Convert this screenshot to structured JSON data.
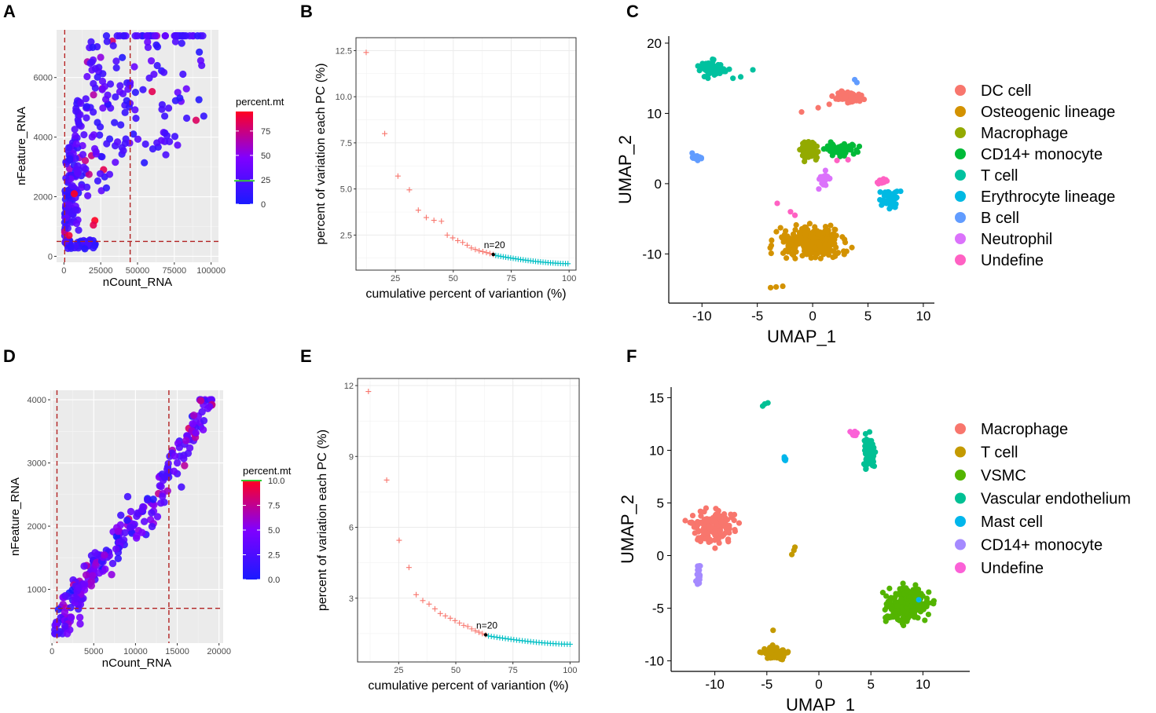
{
  "colors": {
    "panel_bg": "#ebebeb",
    "cutoff_line": "#b22222",
    "elbow_before": "#f8766d",
    "elbow_after": "#00bfc4",
    "mt_low": "#1a1aff",
    "mt_mid": "#8000ff",
    "mt_high": "#ff0022"
  },
  "chart_data": [
    {
      "panel": "A",
      "type": "scatter",
      "xlabel": "nCount_RNA",
      "ylabel": "nFeature_RNA",
      "xlim": [
        -5000,
        105000
      ],
      "ylim": [
        -200,
        7600
      ],
      "x_ticks": [
        0,
        25000,
        50000,
        75000,
        100000
      ],
      "x_tick_labels": [
        "0",
        "25000",
        "50000",
        "75000",
        "100000"
      ],
      "y_ticks": [
        0,
        2000,
        4000,
        6000
      ],
      "y_tick_labels": [
        "0",
        "2000",
        "4000",
        "6000"
      ],
      "cutoffs": {
        "x": [
          500,
          45000
        ],
        "y": [
          500
        ]
      },
      "legend": {
        "title": "percent.mt",
        "range": [
          0,
          95
        ],
        "ticks": [
          0,
          25,
          50,
          75
        ],
        "tick_labels": [
          "0",
          "25",
          "50",
          "75"
        ],
        "marker": 24
      },
      "approx_points": 260,
      "trend": {
        "a": 1800,
        "b": 0.35,
        "max_x": 95000,
        "max_y": 7400
      }
    },
    {
      "panel": "B",
      "type": "scatter",
      "xlabel": "cumulative percent of variantion (%)",
      "ylabel": "percent of variation each PC (%)",
      "xlim": [
        8,
        103
      ],
      "ylim": [
        0.6,
        13.2
      ],
      "x_ticks": [
        25,
        50,
        75,
        100
      ],
      "x_tick_labels": [
        "25",
        "50",
        "75",
        "100"
      ],
      "y_ticks": [
        2.5,
        5.0,
        7.5,
        10.0,
        12.5
      ],
      "y_tick_labels": [
        "2.5",
        "5.0",
        "7.5",
        "10.0",
        "12.5"
      ],
      "annotation": "n=20",
      "pc_cutoff": 20,
      "first_pc_values": [
        12.4,
        8.0,
        5.7,
        4.95,
        3.85,
        3.45,
        3.3,
        3.25,
        2.5,
        2.35,
        2.2,
        2.1,
        1.95,
        1.8,
        1.72,
        1.65,
        1.6,
        1.55,
        1.5,
        1.45
      ],
      "first_pc_cumulative": [
        12.4,
        20.4,
        26.1,
        31.05,
        34.9,
        38.35,
        41.65,
        44.9,
        47.4,
        49.75,
        51.95,
        54.05,
        56.0,
        57.8,
        59.52,
        61.17,
        62.77,
        64.32,
        65.82,
        67.27
      ],
      "tail_count": 30,
      "tail_start_value": 1.42,
      "tail_end_value": 0.95,
      "tail_end_cumulative": 99.5
    },
    {
      "panel": "C",
      "type": "scatter",
      "xlabel": "UMAP_1",
      "ylabel": "UMAP_2",
      "xlim": [
        -13,
        11
      ],
      "ylim": [
        -17,
        21
      ],
      "x_ticks": [
        -10,
        -5,
        0,
        5,
        10
      ],
      "x_tick_labels": [
        "-10",
        "-5",
        "0",
        "5",
        "10"
      ],
      "y_ticks": [
        -10,
        0,
        10,
        20
      ],
      "y_tick_labels": [
        "-10",
        "0",
        "10",
        "20"
      ],
      "legend": [
        {
          "label": "DC cell",
          "color": "#f8766d"
        },
        {
          "label": "Osteogenic lineage",
          "color": "#d39200"
        },
        {
          "label": "Macrophage",
          "color": "#93aa00"
        },
        {
          "label": "CD14+ monocyte",
          "color": "#00ba38"
        },
        {
          "label": "T cell",
          "color": "#00c19f"
        },
        {
          "label": "Erythrocyte lineage",
          "color": "#00b9e3"
        },
        {
          "label": "B cell",
          "color": "#619cff"
        },
        {
          "label": "Neutrophil",
          "color": "#db72fb"
        },
        {
          "label": "Undefine",
          "color": "#ff61c3"
        }
      ],
      "clusters": [
        {
          "label": "DC cell",
          "center": [
            3.3,
            12.4
          ],
          "spread": [
            1.3,
            0.8
          ],
          "n": 90,
          "extra": [
            [
              -1,
              10.2
            ],
            [
              0.5,
              10.8
            ],
            [
              1.5,
              11.3
            ]
          ]
        },
        {
          "label": "Osteogenic lineage",
          "center": [
            0,
            -8.4
          ],
          "spread": [
            3.2,
            2.2
          ],
          "n": 320,
          "extra": [
            [
              -3.3,
              -14.7
            ],
            [
              -2.7,
              -14.6
            ],
            [
              -3.8,
              -14.8
            ]
          ]
        },
        {
          "label": "Macrophage",
          "center": [
            -0.4,
            4.9
          ],
          "spread": [
            0.8,
            1.6
          ],
          "n": 60
        },
        {
          "label": "CD14+ monocyte",
          "center": [
            2.5,
            4.9
          ],
          "spread": [
            1.6,
            0.8
          ],
          "n": 60
        },
        {
          "label": "T cell",
          "center": [
            -8.9,
            16.4
          ],
          "spread": [
            1.4,
            1.1
          ],
          "n": 60,
          "extra": [
            [
              -6.5,
              15.2
            ],
            [
              -5.4,
              16.2
            ],
            [
              -7.2,
              15.0
            ]
          ]
        },
        {
          "label": "Erythrocyte lineage",
          "center": [
            7.0,
            -2.3
          ],
          "spread": [
            0.9,
            1.4
          ],
          "n": 55
        },
        {
          "label": "B cell",
          "center": [
            -10.5,
            3.7
          ],
          "spread": [
            0.6,
            0.5
          ],
          "n": 20,
          "extra": [
            [
              3.8,
              14.8
            ],
            [
              4.0,
              14.4
            ]
          ]
        },
        {
          "label": "Neutrophil",
          "center": [
            1.1,
            0.7
          ],
          "spread": [
            0.5,
            1.1
          ],
          "n": 30
        },
        {
          "label": "Undefine",
          "center": [
            6.2,
            0.3
          ],
          "spread": [
            0.6,
            0.4
          ],
          "n": 18,
          "extra": [
            [
              2.2,
              3.3
            ],
            [
              3.2,
              3.4
            ],
            [
              -3.2,
              -2.8
            ],
            [
              -2.0,
              -4.0
            ],
            [
              -1.6,
              -4.5
            ]
          ]
        }
      ]
    },
    {
      "panel": "D",
      "type": "scatter",
      "xlabel": "nCount_RNA",
      "ylabel": "nFeature_RNA",
      "xlim": [
        -200,
        20500
      ],
      "ylim": [
        150,
        4150
      ],
      "x_ticks": [
        0,
        5000,
        10000,
        15000,
        20000
      ],
      "x_tick_labels": [
        "0",
        "5000",
        "10000",
        "15000",
        "20000"
      ],
      "y_ticks": [
        1000,
        2000,
        3000,
        4000
      ],
      "y_tick_labels": [
        "1000",
        "2000",
        "3000",
        "4000"
      ],
      "cutoffs": {
        "x": [
          600,
          14000
        ],
        "y": [
          700
        ]
      },
      "legend": {
        "title": "percent.mt",
        "range": [
          0,
          10
        ],
        "ticks": [
          0,
          2.5,
          5,
          7.5,
          10
        ],
        "tick_labels": [
          "0.0",
          "2.5",
          "5.0",
          "7.5",
          "10.0"
        ],
        "marker": 10
      },
      "approx_points": 260,
      "trend": {
        "x0": 300,
        "y0": 350,
        "x1": 19500,
        "y1": 3900
      }
    },
    {
      "panel": "E",
      "type": "scatter",
      "xlabel": "cumulative percent of variantion (%)",
      "ylabel": "percent of variation each PC (%)",
      "xlim": [
        7,
        104
      ],
      "ylim": [
        0.3,
        12.3
      ],
      "x_ticks": [
        25,
        50,
        75,
        100
      ],
      "x_tick_labels": [
        "25",
        "50",
        "75",
        "100"
      ],
      "y_ticks": [
        3,
        6,
        9,
        12
      ],
      "y_tick_labels": [
        "3",
        "6",
        "9",
        "12"
      ],
      "annotation": "n=20",
      "pc_cutoff": 20,
      "first_pc_values": [
        11.75,
        8.0,
        5.45,
        4.3,
        3.15,
        2.9,
        2.75,
        2.55,
        2.35,
        2.25,
        2.15,
        2.05,
        1.95,
        1.85,
        1.8,
        1.7,
        1.62,
        1.56,
        1.5,
        1.45
      ],
      "first_pc_cumulative": [
        11.75,
        19.75,
        25.2,
        29.5,
        32.65,
        35.55,
        38.3,
        40.85,
        43.2,
        45.45,
        47.6,
        49.65,
        51.6,
        53.45,
        55.25,
        56.95,
        58.57,
        60.13,
        61.63,
        63.08
      ],
      "tail_count": 30,
      "tail_start_value": 1.42,
      "tail_end_value": 1.05,
      "tail_end_cumulative": 100
    },
    {
      "panel": "F",
      "type": "scatter",
      "xlabel": "UMAP_1",
      "ylabel": "UMAP_2",
      "xlim": [
        -14.2,
        14.5
      ],
      "ylim": [
        -11,
        16
      ],
      "x_ticks": [
        -10,
        -5,
        0,
        5,
        10
      ],
      "x_tick_labels": [
        "-10",
        "-5",
        "0",
        "5",
        "10"
      ],
      "y_ticks": [
        -10,
        -5,
        0,
        5,
        10,
        15
      ],
      "y_tick_labels": [
        "-10",
        "-5",
        "0",
        "5",
        "10",
        "15"
      ],
      "legend": [
        {
          "label": "Macrophage",
          "color": "#f8766d"
        },
        {
          "label": "T cell",
          "color": "#c49a00"
        },
        {
          "label": "VSMC",
          "color": "#53b400"
        },
        {
          "label": "Vascular endothelium",
          "color": "#00c094"
        },
        {
          "label": "Mast cell",
          "color": "#00b6eb"
        },
        {
          "label": "CD14+ monocyte",
          "color": "#a58aff"
        },
        {
          "label": "Undefine",
          "color": "#fb61d7"
        }
      ],
      "clusters": [
        {
          "label": "Macrophage",
          "center": [
            -10.2,
            2.8
          ],
          "spread": [
            2.0,
            1.6
          ],
          "n": 170
        },
        {
          "label": "T cell",
          "center": [
            -4.2,
            -9.3
          ],
          "spread": [
            1.2,
            0.6
          ],
          "n": 70,
          "extra": [
            [
              -2.4,
              0.5
            ],
            [
              -2.6,
              0.1
            ],
            [
              -2.3,
              0.8
            ],
            [
              -4.4,
              -7.1
            ]
          ]
        },
        {
          "label": "VSMC",
          "center": [
            8.4,
            -4.5
          ],
          "spread": [
            2.2,
            1.8
          ],
          "n": 200
        },
        {
          "label": "Vascular endothelium",
          "center": [
            4.8,
            9.7
          ],
          "spread": [
            0.6,
            1.9
          ],
          "n": 70,
          "extra": [
            [
              -5.2,
              14.4
            ],
            [
              -5.4,
              14.2
            ],
            [
              -4.9,
              14.5
            ]
          ]
        },
        {
          "label": "Mast cell",
          "center": [
            -3.3,
            9.2
          ],
          "spread": [
            0.2,
            0.3
          ],
          "n": 8,
          "extra": [
            [
              9.6,
              -4.2
            ]
          ]
        },
        {
          "label": "CD14+ monocyte",
          "center": [
            -11.5,
            -1.8
          ],
          "spread": [
            0.3,
            1.2
          ],
          "n": 16
        },
        {
          "label": "Undefine",
          "center": [
            3.4,
            11.6
          ],
          "spread": [
            0.7,
            0.3
          ],
          "n": 12
        }
      ]
    }
  ]
}
